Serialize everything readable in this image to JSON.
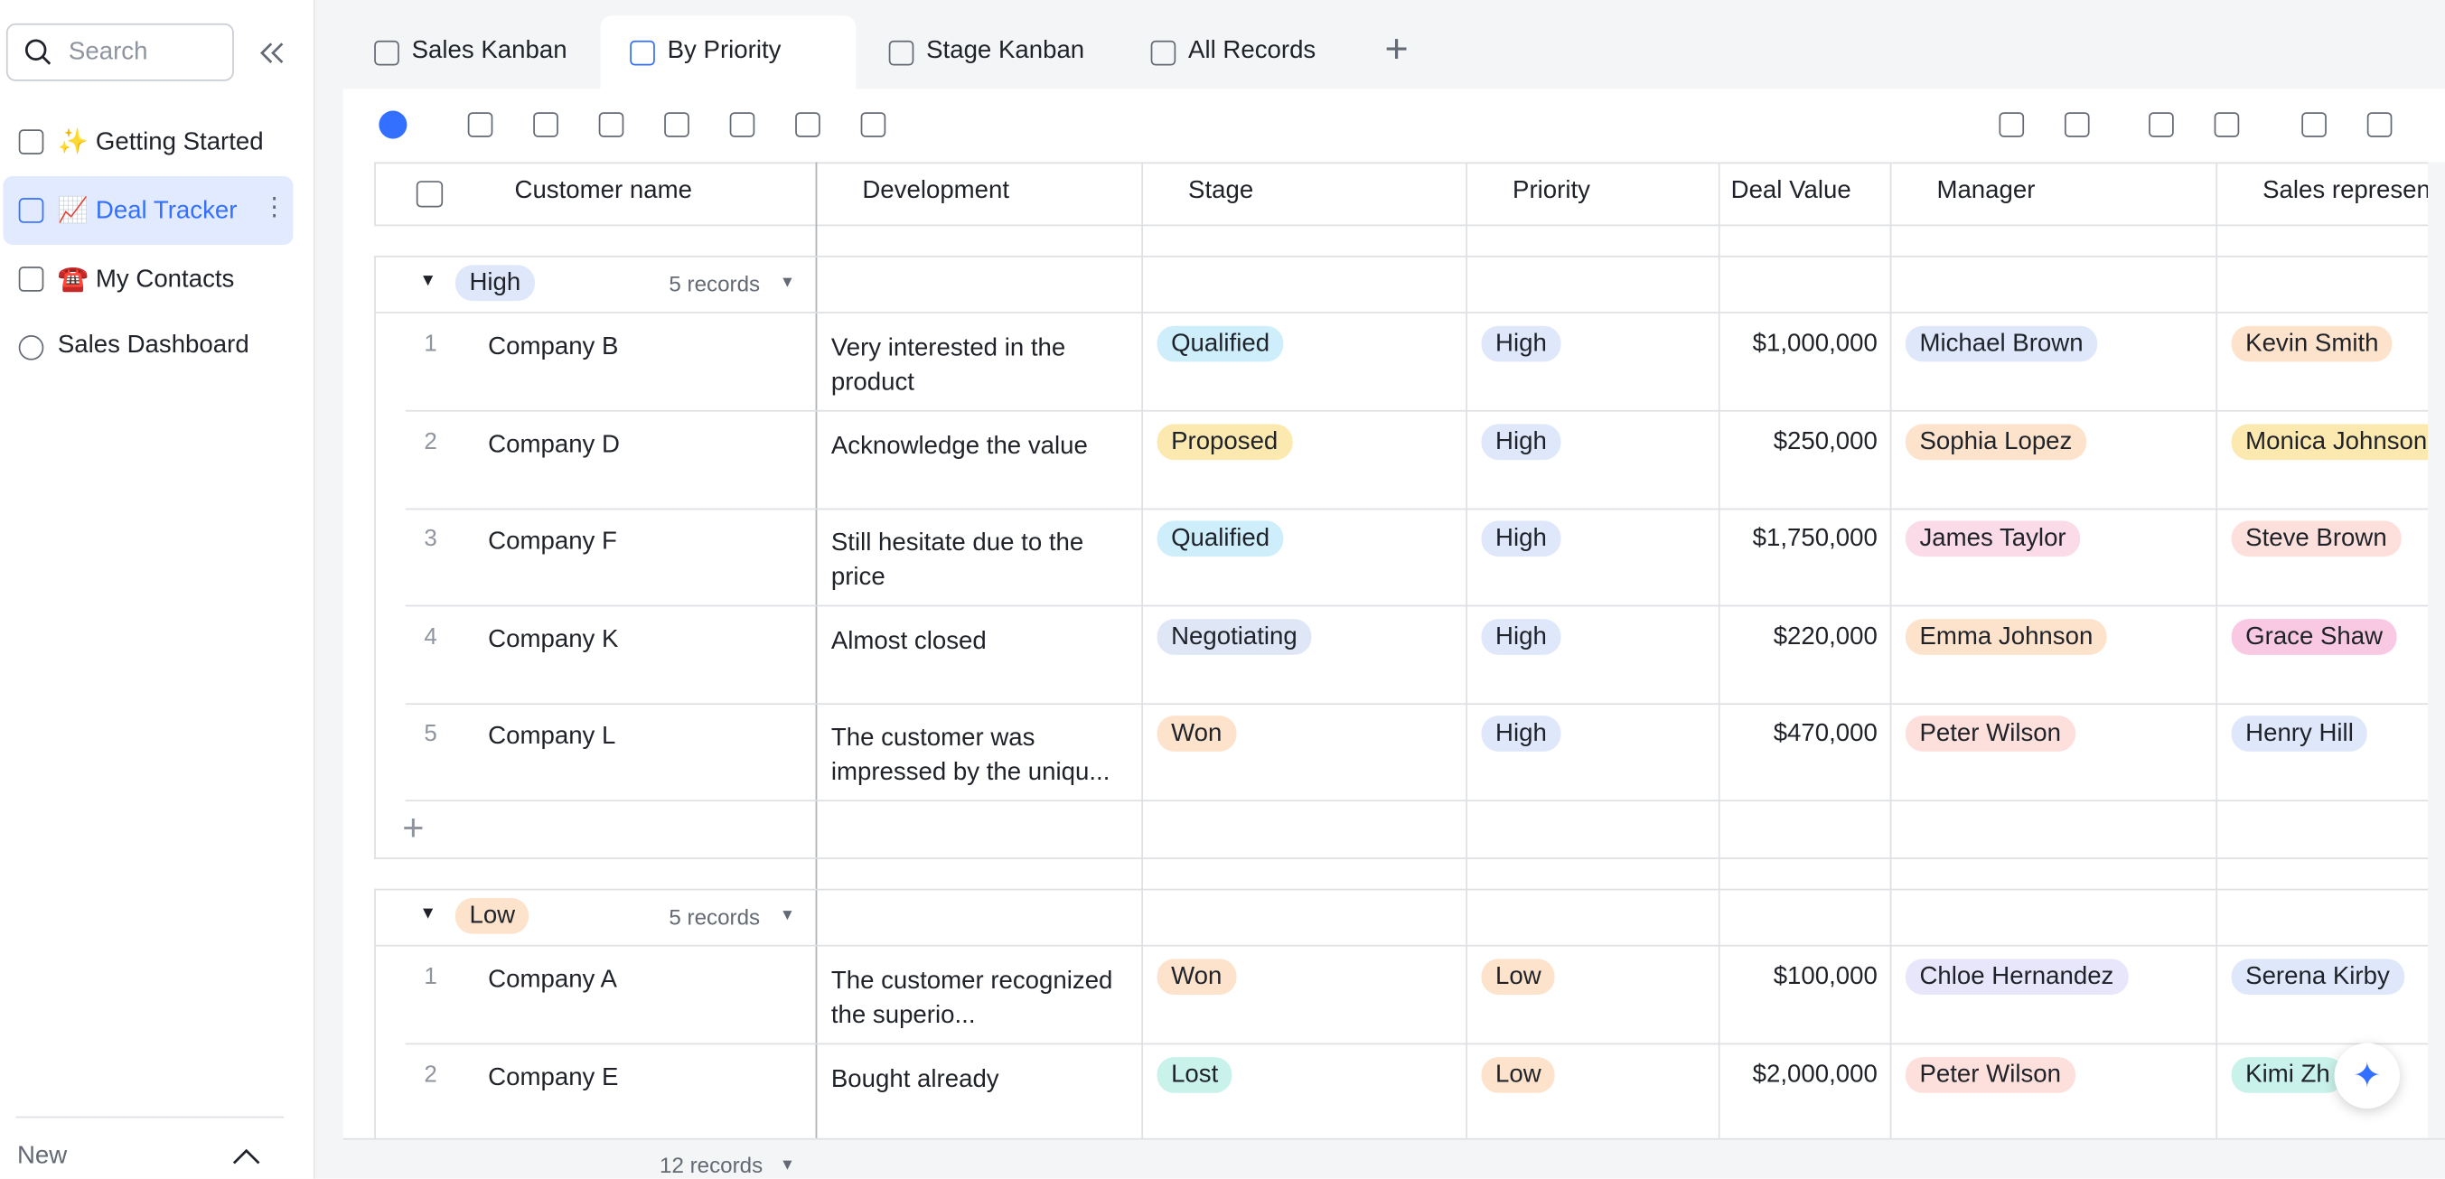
{
  "sidebar": {
    "search_placeholder": "Search",
    "items": [
      "✨ Getting Started",
      "📈 Deal Tracker",
      "☎️ My Contacts",
      "Sales Dashboard"
    ],
    "footer": "New"
  },
  "tabs": [
    "Sales Kanban",
    "By Priority",
    "Stage Kanban",
    "All Records"
  ],
  "table": {
    "columns": [
      "Customer name",
      "Development",
      "Stage",
      "Priority",
      "Deal Value",
      "Manager",
      "Sales represen"
    ],
    "groups": [
      {
        "name": "High",
        "color": "#dfe7fb",
        "count": "5 records",
        "rows": [
          {
            "index": 1,
            "customer": "Company B",
            "development": "Very interested in the product",
            "stage": {
              "text": "Qualified",
              "color": "#cdeefa"
            },
            "priority": {
              "text": "High",
              "color": "#dfe7fb"
            },
            "deal_value": "$1,000,000",
            "manager": {
              "text": "Michael Brown",
              "color": "#dfe7fb"
            },
            "rep": {
              "text": "Kevin Smith",
              "color": "#fde3cc"
            }
          },
          {
            "index": 2,
            "customer": "Company D",
            "development": "Acknowledge the value",
            "stage": {
              "text": "Proposed",
              "color": "#fbe9b0"
            },
            "priority": {
              "text": "High",
              "color": "#dfe7fb"
            },
            "deal_value": "$250,000",
            "manager": {
              "text": "Sophia Lopez",
              "color": "#fde3cc"
            },
            "rep": {
              "text": "Monica Johnson",
              "color": "#fbe9b0"
            }
          },
          {
            "index": 3,
            "customer": "Company F",
            "development": "Still hesitate due to the price",
            "stage": {
              "text": "Qualified",
              "color": "#cdeefa"
            },
            "priority": {
              "text": "High",
              "color": "#dfe7fb"
            },
            "deal_value": "$1,750,000",
            "manager": {
              "text": "James Taylor",
              "color": "#fbdbe8"
            },
            "rep": {
              "text": "Steve Brown",
              "color": "#fde0dc"
            }
          },
          {
            "index": 4,
            "customer": "Company K",
            "development": "Almost closed",
            "stage": {
              "text": "Negotiating",
              "color": "#dfe7f7"
            },
            "priority": {
              "text": "High",
              "color": "#dfe7fb"
            },
            "deal_value": "$220,000",
            "manager": {
              "text": "Emma Johnson",
              "color": "#fde3cc"
            },
            "rep": {
              "text": "Grace Shaw",
              "color": "#f9c9e4"
            }
          },
          {
            "index": 5,
            "customer": "Company L",
            "development": "The customer was impressed by the uniqu...",
            "stage": {
              "text": "Won",
              "color": "#fde3cc"
            },
            "priority": {
              "text": "High",
              "color": "#dfe7fb"
            },
            "deal_value": "$470,000",
            "manager": {
              "text": "Peter Wilson",
              "color": "#fde0dc"
            },
            "rep": {
              "text": "Henry Hill",
              "color": "#dfe7fb"
            }
          }
        ]
      },
      {
        "name": "Low",
        "color": "#fde3cc",
        "count": "5 records",
        "rows": [
          {
            "index": 1,
            "customer": "Company A",
            "development": "The customer recognized the superio...",
            "stage": {
              "text": "Won",
              "color": "#fde3cc"
            },
            "priority": {
              "text": "Low",
              "color": "#fde3cc"
            },
            "deal_value": "$100,000",
            "manager": {
              "text": "Chloe Hernandez",
              "color": "#e8e6fa"
            },
            "rep": {
              "text": "Serena Kirby",
              "color": "#dfe7fb"
            }
          },
          {
            "index": 2,
            "customer": "Company E",
            "development": "Bought already",
            "stage": {
              "text": "Lost",
              "color": "#c9f2ea"
            },
            "priority": {
              "text": "Low",
              "color": "#fde3cc"
            },
            "deal_value": "$2,000,000",
            "manager": {
              "text": "Peter Wilson",
              "color": "#fde0dc"
            },
            "rep": {
              "text": "Kimi Zh",
              "color": "#c9f2ea"
            }
          }
        ]
      }
    ],
    "footer": "12 records"
  }
}
